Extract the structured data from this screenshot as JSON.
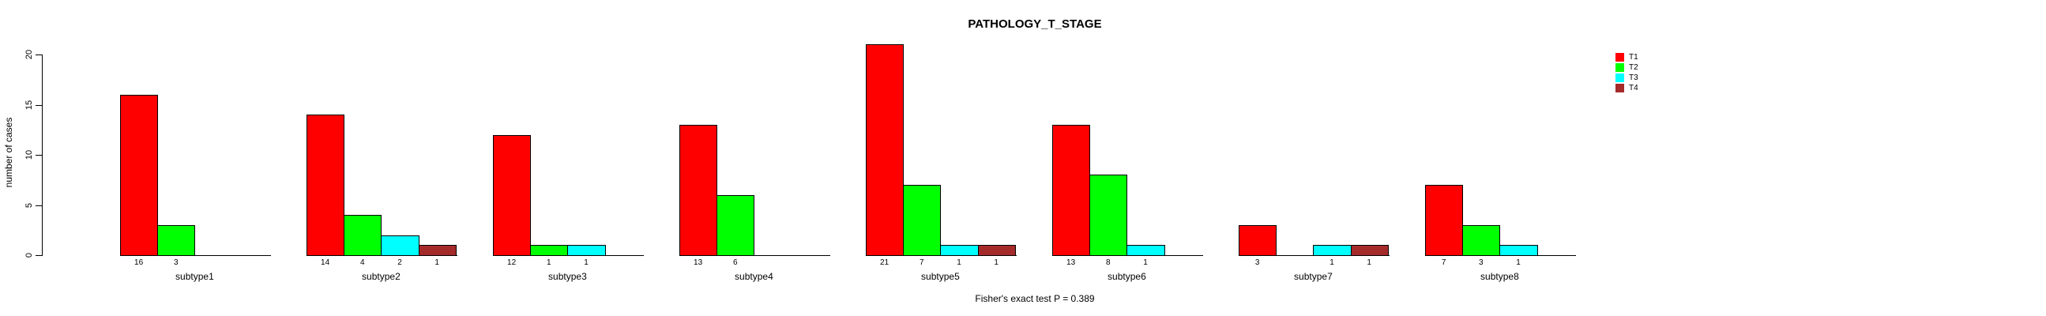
{
  "title": "PATHOLOGY_T_STAGE",
  "caption": "Fisher's exact test P = 0.389",
  "y_axis": {
    "label": "number of cases",
    "ticks": [
      0,
      5,
      10,
      15,
      20
    ]
  },
  "legend": {
    "position": "right",
    "entries": [
      {
        "label": "T1",
        "color": "#FF0000"
      },
      {
        "label": "T2",
        "color": "#00FF00"
      },
      {
        "label": "T3",
        "color": "#00FFFF"
      },
      {
        "label": "T4",
        "color": "#A52A2A"
      }
    ]
  },
  "chart_data": {
    "type": "bar",
    "title": "PATHOLOGY_T_STAGE",
    "xlabel": "",
    "ylabel": "number of cases",
    "ylim": [
      0,
      20
    ],
    "grid": false,
    "legend_position": "right",
    "annotation": "Fisher's exact test P = 0.389",
    "categories": [
      "subtype1",
      "subtype2",
      "subtype3",
      "subtype4",
      "subtype5",
      "subtype6",
      "subtype7",
      "subtype8"
    ],
    "series": [
      {
        "name": "T1",
        "color": "#FF0000",
        "values": [
          16,
          14,
          12,
          13,
          21,
          13,
          3,
          7
        ]
      },
      {
        "name": "T2",
        "color": "#00FF00",
        "values": [
          3,
          4,
          1,
          6,
          7,
          8,
          0,
          3
        ]
      },
      {
        "name": "T3",
        "color": "#00FFFF",
        "values": [
          0,
          2,
          1,
          0,
          1,
          1,
          1,
          1
        ]
      },
      {
        "name": "T4",
        "color": "#A52A2A",
        "values": [
          0,
          1,
          0,
          0,
          1,
          0,
          1,
          0
        ]
      }
    ],
    "value_label_rule": "non-zero counts printed under each bar"
  }
}
